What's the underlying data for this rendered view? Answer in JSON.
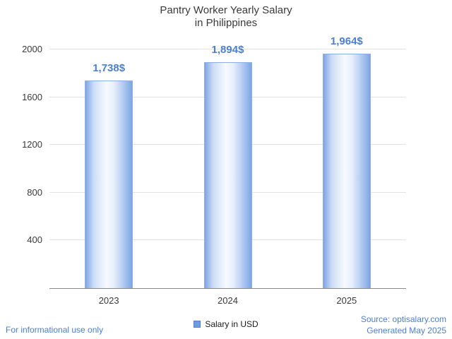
{
  "title": {
    "line1": "Pantry Worker Yearly Salary",
    "line2": "in Philippines"
  },
  "chart_data": {
    "type": "bar",
    "title": "Pantry Worker Yearly Salary in Philippines",
    "categories": [
      "2023",
      "2024",
      "2025"
    ],
    "values": [
      1738,
      1894,
      1964
    ],
    "value_labels": [
      "1,738$",
      "1,894$",
      "1,964$"
    ],
    "series_name": "Salary in USD",
    "xlabel": "",
    "ylabel": "",
    "ylim": [
      0,
      2000
    ],
    "yticks": [
      400,
      800,
      1200,
      1600,
      2000
    ],
    "grid": true,
    "legend_position": "bottom",
    "bar_color": "#7ea5e4",
    "value_label_color": "#4a7fd4"
  },
  "legend": {
    "label": "Salary in USD"
  },
  "footer": {
    "disclaimer": "For informational use only",
    "source": "Source: optisalary.com",
    "generated": "Generated May 2025"
  }
}
